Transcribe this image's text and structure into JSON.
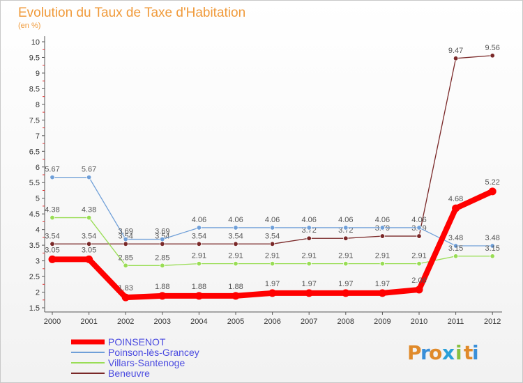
{
  "chart_data": {
    "type": "line",
    "title": "Evolution du Taux de Taxe d'Habitation",
    "subtitle": "(en %)",
    "xlabel": "",
    "ylabel": "",
    "categories": [
      "2000",
      "2001",
      "2002",
      "2003",
      "2004",
      "2005",
      "2006",
      "2007",
      "2008",
      "2009",
      "2010",
      "2011",
      "2012"
    ],
    "ylim": [
      1.5,
      10
    ],
    "yticks": [
      "1.5",
      "2",
      "2.5",
      "3",
      "3.5",
      "4",
      "4.5",
      "5",
      "5.5",
      "6",
      "6.5",
      "7",
      "7.5",
      "8",
      "8.5",
      "9",
      "9.5",
      "10"
    ],
    "grid": false,
    "legend_position": "bottom-left",
    "series": [
      {
        "name": "POINSENOT",
        "color": "#ff0000",
        "values": [
          3.05,
          3.05,
          1.83,
          1.88,
          1.88,
          1.88,
          1.97,
          1.97,
          1.97,
          1.97,
          2.08,
          4.68,
          5.22
        ],
        "labels": [
          "3.05",
          "3.05",
          "1.83",
          "1.88",
          "1.88",
          "1.88",
          "1.97",
          "1.97",
          "1.97",
          "1.97",
          "2.08",
          "4.68",
          "5.22"
        ]
      },
      {
        "name": "Poinson-lès-Grancey",
        "color": "#6f9fd8",
        "values": [
          5.67,
          5.67,
          3.69,
          3.69,
          4.06,
          4.06,
          4.06,
          4.06,
          4.06,
          4.06,
          4.06,
          3.48,
          3.48
        ],
        "labels": [
          "5.67",
          "5.67",
          "3.69",
          "3.69",
          "4.06",
          "4.06",
          "4.06",
          "4.06",
          "4.06",
          "4.06",
          "4.06",
          "3.48",
          "3.48"
        ]
      },
      {
        "name": "Villars-Santenoge",
        "color": "#99dd55",
        "values": [
          4.38,
          4.38,
          2.85,
          2.85,
          2.91,
          2.91,
          2.91,
          2.91,
          2.91,
          2.91,
          2.91,
          3.15,
          3.15
        ],
        "labels": [
          "4.38",
          "4.38",
          "2.85",
          "2.85",
          "2.91",
          "2.91",
          "2.91",
          "2.91",
          "2.91",
          "2.91",
          "2.91",
          "3.15",
          "3.15"
        ]
      },
      {
        "name": "Beneuvre",
        "color": "#7a2828",
        "values": [
          3.54,
          3.54,
          3.54,
          3.54,
          3.54,
          3.54,
          3.54,
          3.72,
          3.72,
          3.79,
          3.79,
          9.47,
          9.56
        ],
        "labels": [
          "3.54",
          "3.54",
          "3.54",
          "3.54",
          "3.54",
          "3.54",
          "3.54",
          "3.72",
          "3.72",
          "3.79",
          "3.79",
          "9.47",
          "9.56"
        ]
      }
    ]
  },
  "logo": {
    "text": "Proxiti",
    "letters": [
      "P",
      "r",
      "o",
      "x",
      "i",
      "t",
      "i"
    ]
  }
}
